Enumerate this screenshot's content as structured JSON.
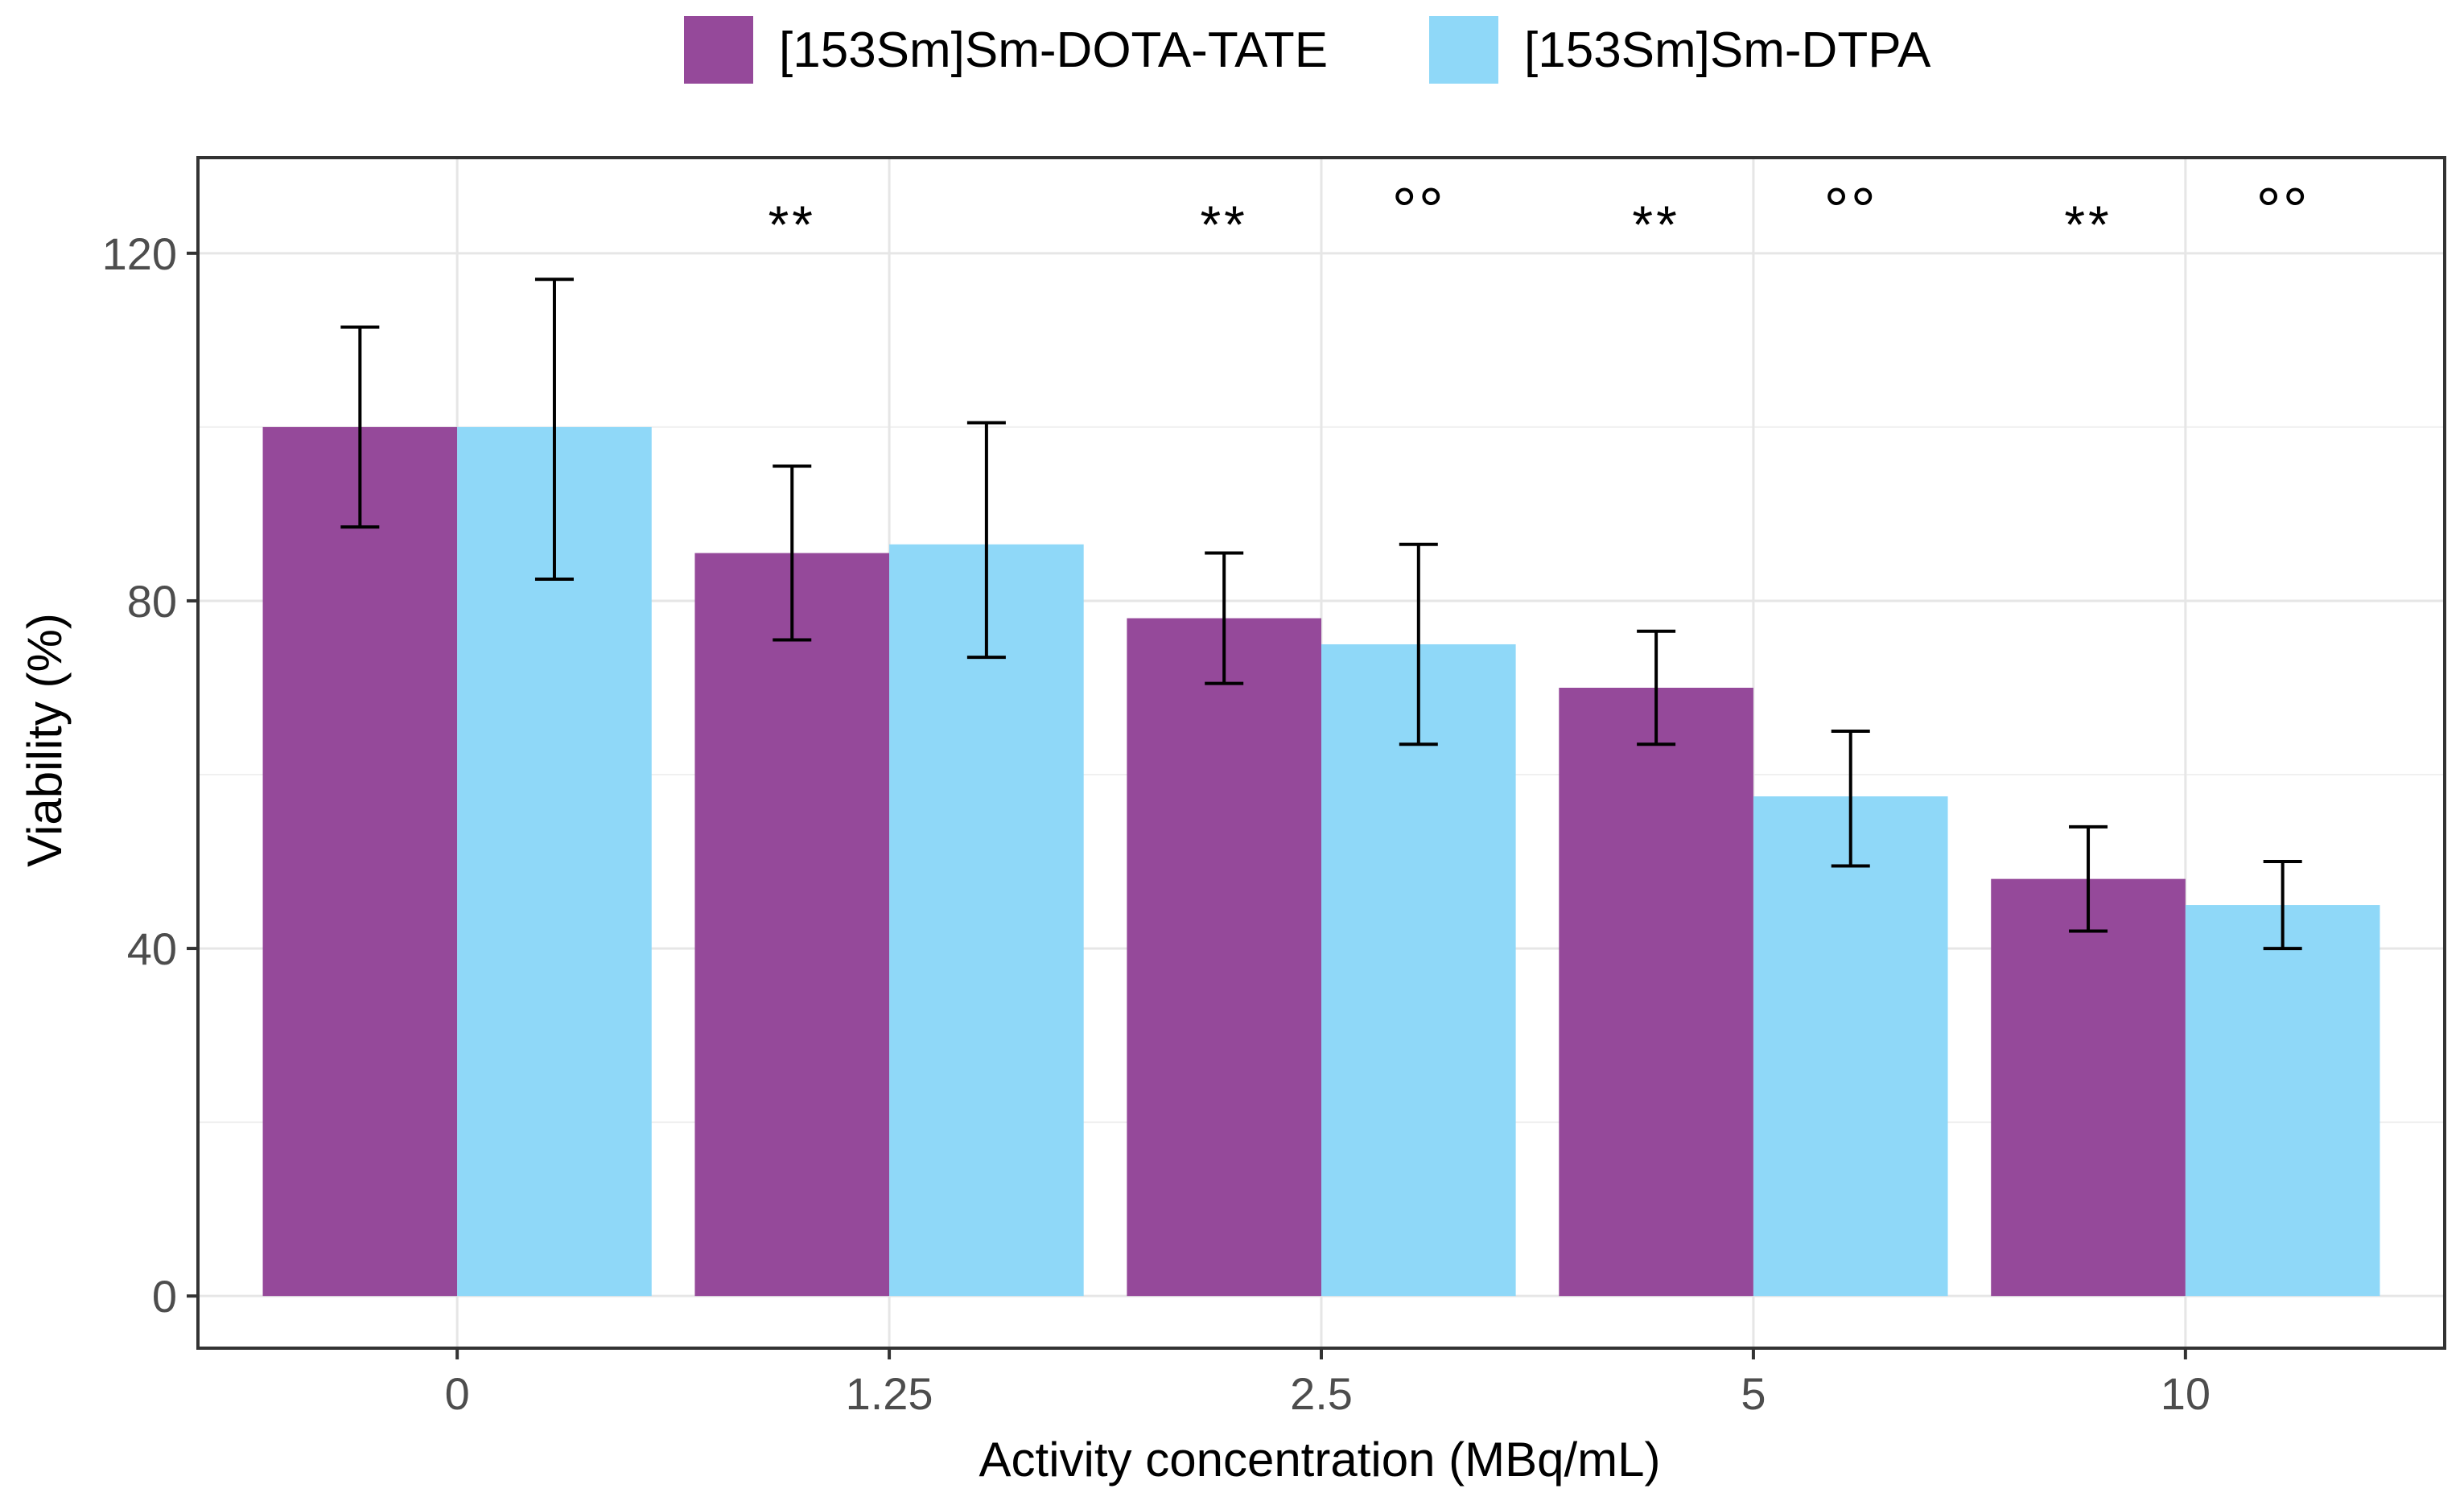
{
  "chart_data": {
    "type": "bar",
    "title": "",
    "xlabel": "Activity concentration (MBq/mL)",
    "ylabel": "Viability (%)",
    "categories": [
      "0",
      "1.25",
      "2.5",
      "5",
      "10"
    ],
    "ylim": [
      -6,
      131
    ],
    "y_ticks": [
      "0",
      "40",
      "80",
      "120"
    ],
    "y_tick_values": [
      0,
      40,
      80,
      120
    ],
    "y_minor_gridlines": [
      20,
      60,
      100
    ],
    "grid": true,
    "legend_position": "top",
    "series": [
      {
        "name": "[153Sm]Sm-DOTA-TATE",
        "color": "#95499a",
        "values": [
          100,
          85.5,
          78,
          70,
          48
        ],
        "error_low": [
          88.5,
          75.5,
          70.5,
          63.5,
          42
        ],
        "error_high": [
          111.5,
          95.5,
          85.5,
          76.5,
          54
        ],
        "significance": [
          "",
          "**",
          "**",
          "**",
          "**"
        ]
      },
      {
        "name": "[153Sm]Sm-DTPA",
        "color": "#8fd8f8",
        "values": [
          100,
          86.5,
          75,
          57.5,
          45
        ],
        "error_low": [
          82.5,
          73.5,
          63.5,
          49.5,
          40
        ],
        "error_high": [
          117,
          100.5,
          86.5,
          65,
          50
        ],
        "significance": [
          "",
          "",
          "°°",
          "°°",
          "°°"
        ]
      }
    ]
  }
}
